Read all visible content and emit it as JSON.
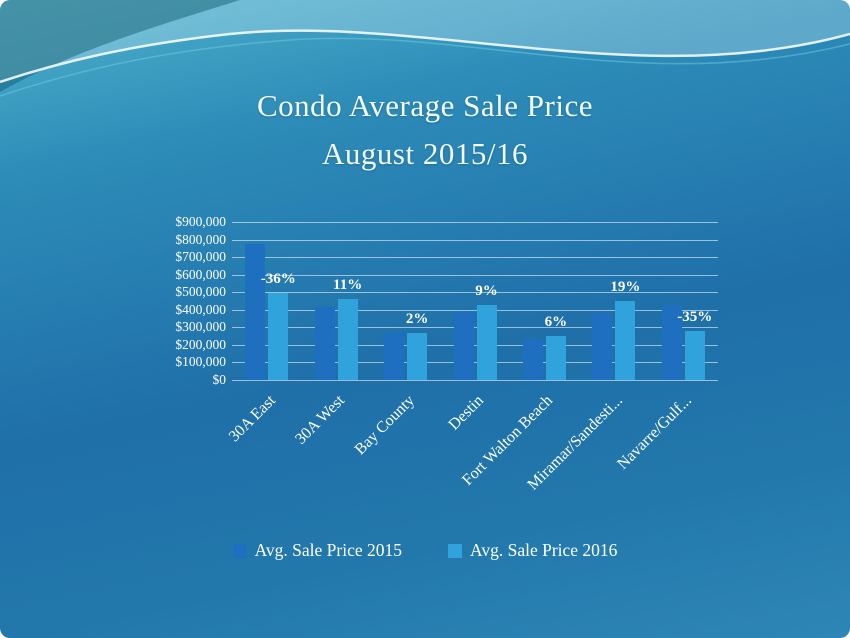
{
  "title": {
    "line1": "Condo Average Sale Price",
    "line2": "August 2015/16"
  },
  "chart_data": {
    "type": "bar",
    "title": "Condo Average Sale Price August 2015/16",
    "categories": [
      "30A East",
      "30A West",
      "Bay County",
      "Destin",
      "Fort Walton Beach",
      "Miramar/Sandesti...",
      "Navarre/Gulf..."
    ],
    "series": [
      {
        "name": "Avg. Sale Price 2015",
        "color": "#1e6fc0",
        "values": [
          775000,
          415000,
          265000,
          390000,
          235000,
          380000,
          430000
        ]
      },
      {
        "name": "Avg. Sale Price 2016",
        "color": "#31a3dc",
        "values": [
          495000,
          460000,
          270000,
          425000,
          250000,
          452000,
          280000
        ]
      }
    ],
    "pct_labels": [
      "-36%",
      "11%",
      "2%",
      "9%",
      "6%",
      "19%",
      "-35%"
    ],
    "ylim": [
      0,
      900000
    ],
    "ytick_step": 100000,
    "yticks": [
      "$900,000",
      "$800,000",
      "$700,000",
      "$600,000",
      "$500,000",
      "$400,000",
      "$300,000",
      "$200,000",
      "$100,000",
      "$0"
    ],
    "grid": true,
    "legend_position": "bottom"
  }
}
